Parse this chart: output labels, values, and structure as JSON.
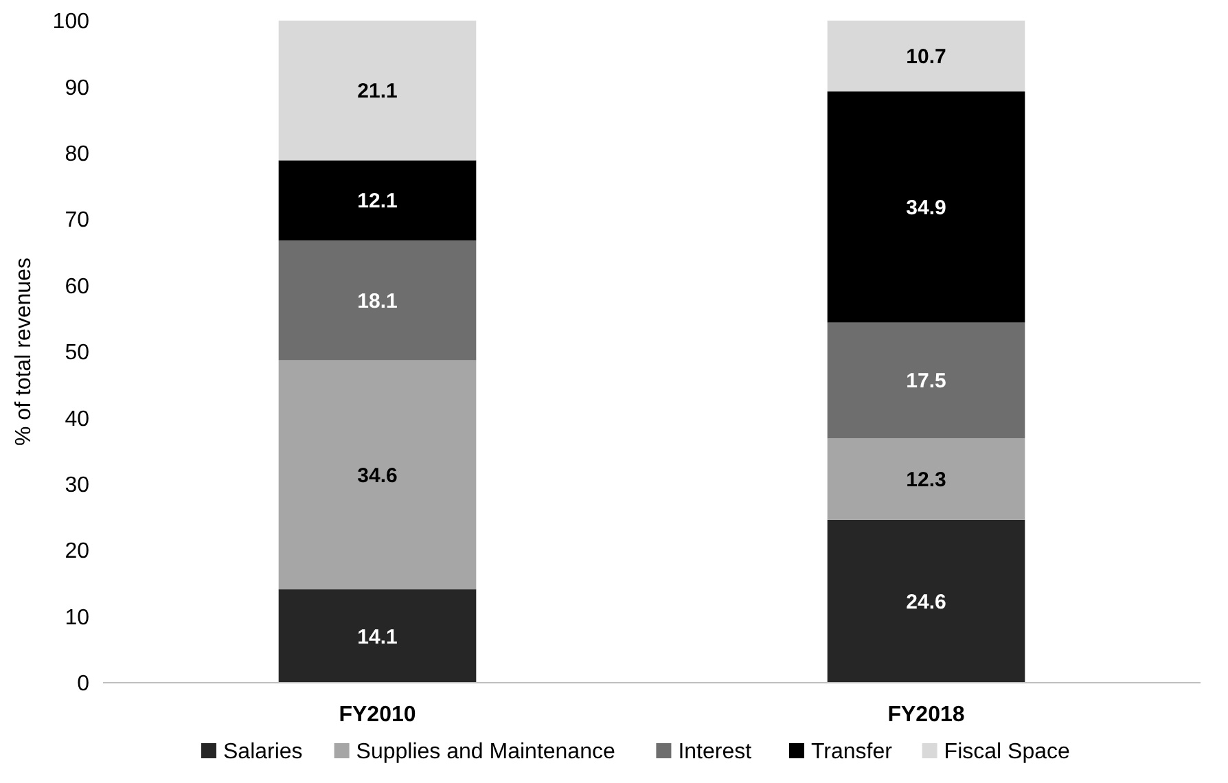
{
  "chart_data": {
    "type": "bar",
    "stacked": true,
    "ylabel": "% of total revenues",
    "categories": [
      "FY2010",
      "FY2018"
    ],
    "series": [
      {
        "name": "Salaries",
        "color": "#262626",
        "values": [
          14.1,
          24.6
        ]
      },
      {
        "name": "Supplies and Maintenance",
        "color": "#a6a6a6",
        "values": [
          34.6,
          12.3
        ]
      },
      {
        "name": "Interest",
        "color": "#6e6e6e",
        "values": [
          18.1,
          17.5
        ]
      },
      {
        "name": "Transfer",
        "color": "#000000",
        "values": [
          12.1,
          34.9
        ]
      },
      {
        "name": "Fiscal Space",
        "color": "#d9d9d9",
        "values": [
          21.1,
          10.7
        ]
      }
    ],
    "ylim": [
      0,
      100
    ],
    "yticks": [
      0,
      10,
      20,
      30,
      40,
      50,
      60,
      70,
      80,
      90,
      100
    ],
    "data_labels": true,
    "legend": "bottom",
    "grid": false
  }
}
